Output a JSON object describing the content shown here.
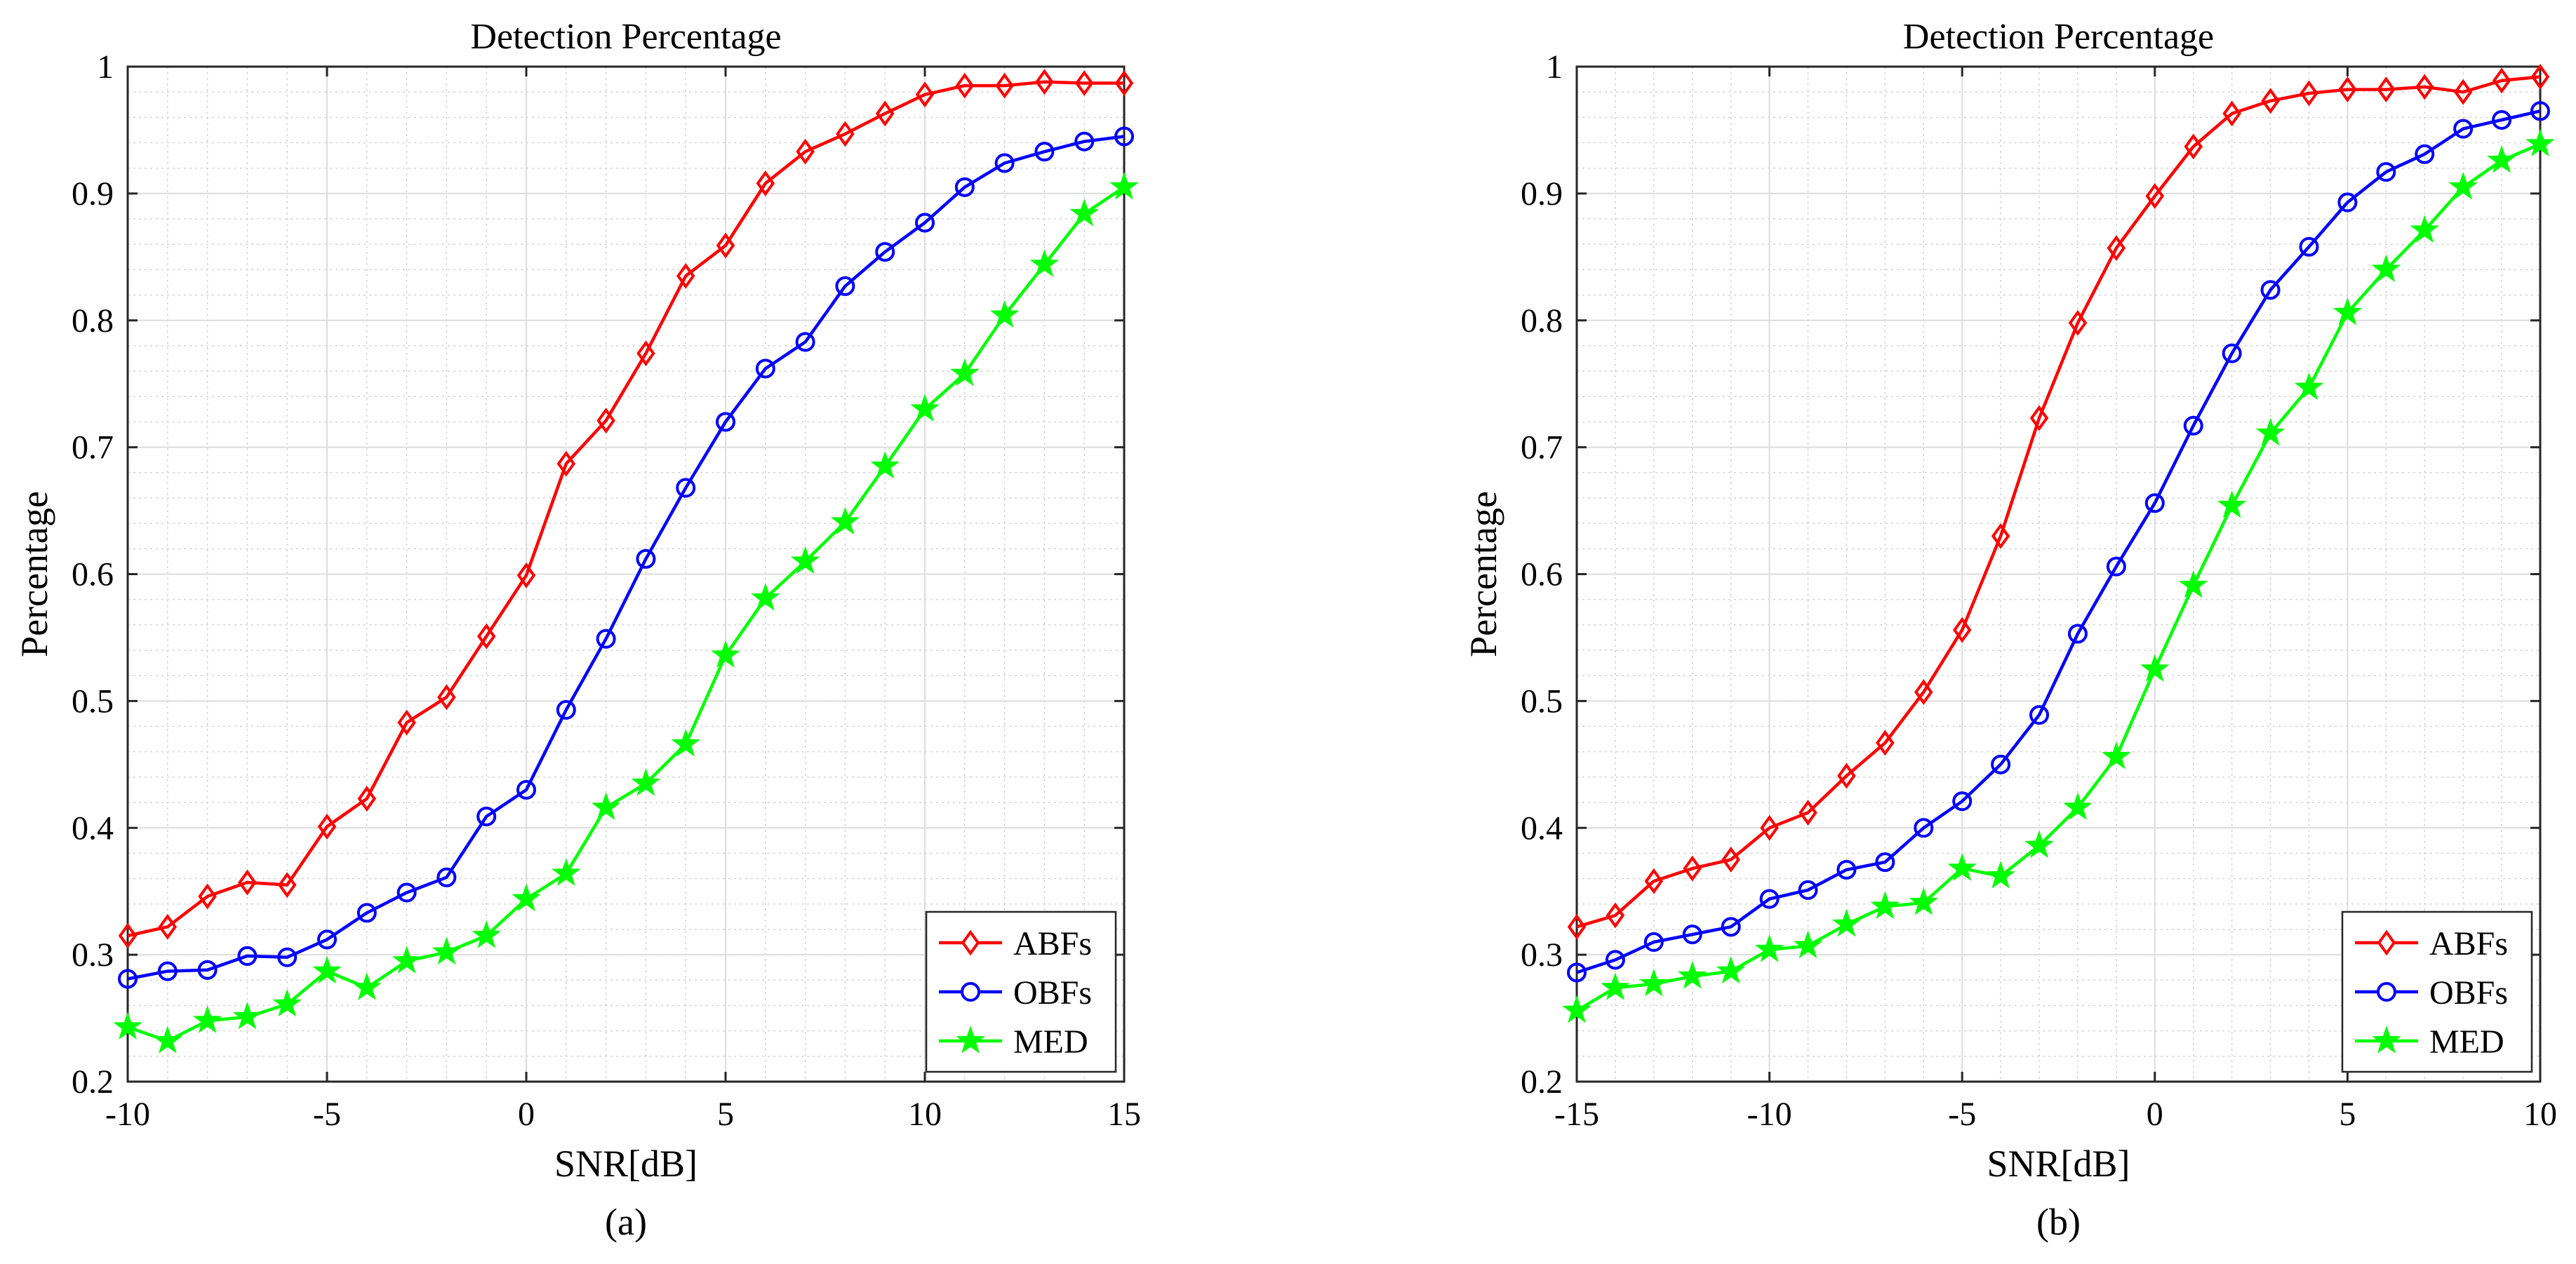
{
  "chart_data": [
    {
      "type": "line",
      "title": "Detection Percentage",
      "xlabel": "SNR[dB]",
      "ylabel": "Percentage",
      "caption": "(a)",
      "xlim": [
        -10,
        15
      ],
      "ylim": [
        0.2,
        1
      ],
      "xticks": [
        "-10",
        "-5",
        "0",
        "5",
        "10",
        "15"
      ],
      "yticks": [
        "0.2",
        "0.3",
        "0.4",
        "0.5",
        "0.6",
        "0.7",
        "0.8",
        "0.9",
        "1"
      ],
      "grid": true,
      "legend_position": "bottom-right",
      "x": [
        -10,
        -9,
        -8,
        -7,
        -6,
        -5,
        -4,
        -3,
        -2,
        -1,
        0,
        1,
        2,
        3,
        4,
        5,
        6,
        7,
        8,
        9,
        10,
        11,
        12,
        13,
        14,
        15
      ],
      "series": [
        {
          "name": "ABFs",
          "color": "#ff0000",
          "marker": "diamond",
          "values": [
            0.315,
            0.322,
            0.346,
            0.357,
            0.355,
            0.401,
            0.423,
            0.483,
            0.503,
            0.551,
            0.599,
            0.687,
            0.721,
            0.774,
            0.835,
            0.859,
            0.908,
            0.933,
            0.947,
            0.963,
            0.978,
            0.985,
            0.985,
            0.988,
            0.987,
            0.987
          ]
        },
        {
          "name": "OBFs",
          "color": "#0000ff",
          "marker": "circle",
          "values": [
            0.281,
            0.287,
            0.288,
            0.299,
            0.298,
            0.312,
            0.333,
            0.349,
            0.361,
            0.409,
            0.43,
            0.493,
            0.549,
            0.612,
            0.668,
            0.72,
            0.762,
            0.783,
            0.827,
            0.854,
            0.877,
            0.905,
            0.924,
            0.933,
            0.941,
            0.945
          ]
        },
        {
          "name": "MED",
          "color": "#00ff00",
          "marker": "star",
          "values": [
            0.243,
            0.232,
            0.248,
            0.251,
            0.261,
            0.287,
            0.274,
            0.295,
            0.302,
            0.315,
            0.344,
            0.364,
            0.416,
            0.435,
            0.466,
            0.536,
            0.581,
            0.61,
            0.641,
            0.685,
            0.73,
            0.758,
            0.804,
            0.844,
            0.884,
            0.905
          ]
        }
      ]
    },
    {
      "type": "line",
      "title": "Detection Percentage",
      "xlabel": "SNR[dB]",
      "ylabel": "Percentage",
      "caption": "(b)",
      "xlim": [
        -15,
        10
      ],
      "ylim": [
        0.2,
        1
      ],
      "xticks": [
        "-15",
        "-10",
        "-5",
        "0",
        "5",
        "10"
      ],
      "yticks": [
        "0.2",
        "0.3",
        "0.4",
        "0.5",
        "0.6",
        "0.7",
        "0.8",
        "0.9",
        "1"
      ],
      "grid": true,
      "legend_position": "bottom-right",
      "x": [
        -15,
        -14,
        -13,
        -12,
        -11,
        -10,
        -9,
        -8,
        -7,
        -6,
        -5,
        -4,
        -3,
        -2,
        -1,
        0,
        1,
        2,
        3,
        4,
        5,
        6,
        7,
        8,
        9,
        10
      ],
      "series": [
        {
          "name": "ABFs",
          "color": "#ff0000",
          "marker": "diamond",
          "values": [
            0.322,
            0.331,
            0.358,
            0.368,
            0.375,
            0.4,
            0.412,
            0.441,
            0.467,
            0.507,
            0.556,
            0.63,
            0.723,
            0.798,
            0.857,
            0.898,
            0.937,
            0.963,
            0.973,
            0.979,
            0.982,
            0.982,
            0.984,
            0.98,
            0.989,
            0.992
          ]
        },
        {
          "name": "OBFs",
          "color": "#0000ff",
          "marker": "circle",
          "values": [
            0.286,
            0.296,
            0.31,
            0.316,
            0.322,
            0.344,
            0.351,
            0.367,
            0.373,
            0.4,
            0.421,
            0.45,
            0.489,
            0.553,
            0.606,
            0.656,
            0.717,
            0.774,
            0.824,
            0.858,
            0.893,
            0.917,
            0.931,
            0.951,
            0.958,
            0.965
          ]
        },
        {
          "name": "MED",
          "color": "#00ff00",
          "marker": "star",
          "values": [
            0.256,
            0.274,
            0.277,
            0.283,
            0.287,
            0.304,
            0.307,
            0.324,
            0.338,
            0.341,
            0.368,
            0.362,
            0.386,
            0.416,
            0.456,
            0.525,
            0.591,
            0.654,
            0.711,
            0.747,
            0.806,
            0.84,
            0.871,
            0.905,
            0.926,
            0.939
          ]
        }
      ]
    }
  ]
}
